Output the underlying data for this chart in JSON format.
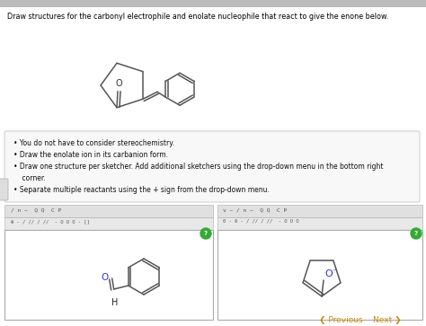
{
  "title": "Draw structures for the carbonyl electrophile and enolate nucleophile that react to give the enone below.",
  "bg_color": "#ffffff",
  "bullet_points": [
    "You do not have to consider stereochemistry.",
    "Draw the enolate ion in its carbanion form.",
    "Draw one structure per sketcher. Add additional sketchers using the drop-down menu in the bottom right corner.",
    "Separate multiple reactants using the + sign from the drop-down menu."
  ],
  "prev_next_color": "#c8860a",
  "green_circle": "#33aa33",
  "blue_text": "#3333cc",
  "outer_bg": "#dddddd"
}
